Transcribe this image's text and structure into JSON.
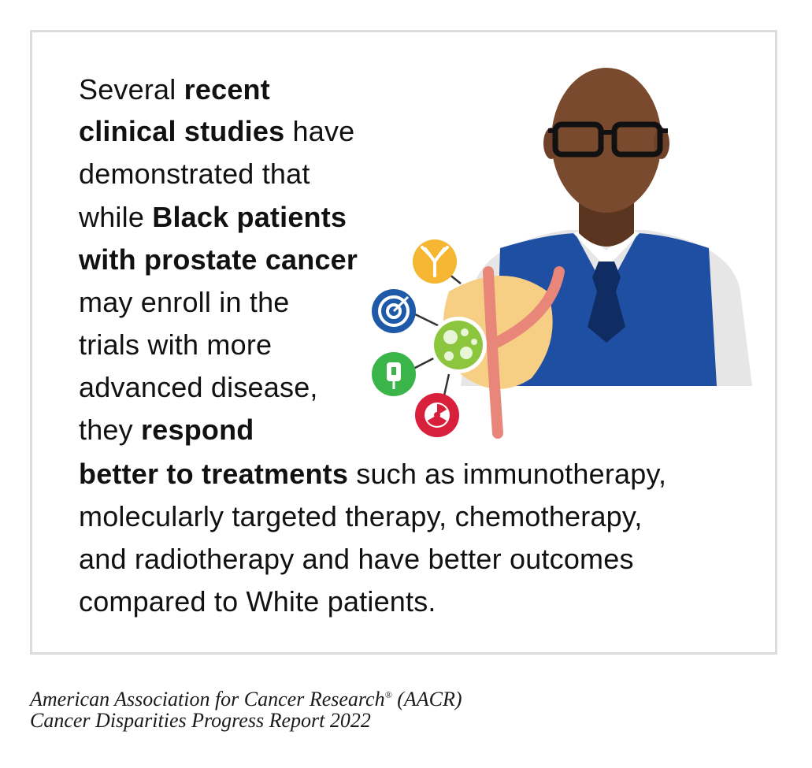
{
  "body_text": {
    "l1": {
      "a": "Several ",
      "b": "recent"
    },
    "l2": {
      "b": "clinical studies",
      "c": " have"
    },
    "l3": {
      "a": "demonstrated that"
    },
    "l4": {
      "a": "while ",
      "b": "Black patients"
    },
    "l5": {
      "b": "with prostate cancer"
    },
    "l6": {
      "a": "may enroll in the"
    },
    "l7": {
      "a": "trials with more"
    },
    "l8": {
      "a": "advanced disease,"
    },
    "l9": {
      "a": "they ",
      "b": "respond"
    },
    "l10": {
      "b": "better to treatments",
      "c": " such as immunotherapy,"
    },
    "l11": {
      "a": "molecularly targeted therapy, chemotherapy,"
    },
    "l12": {
      "a": "and radiotherapy and have better outcomes"
    },
    "l13": {
      "a": "compared to White patients."
    }
  },
  "credit": {
    "line1_a": "American Association for Cancer Research",
    "line1_reg": "®",
    "line1_b": " (AACR)",
    "line2": "Cancer Disparities Progress Report 2022"
  },
  "illustration": {
    "figure": "bald-man-with-glasses-vest-tie",
    "organ": "prostate-with-urethra",
    "treatment_icons": [
      "antibody-icon",
      "target-icon",
      "iv-bag-icon",
      "radiation-icon"
    ],
    "colors": {
      "skin": "#7a4a2e",
      "vest": "#1f4fa3",
      "tie": "#0f2d63",
      "shirt": "#e6e6e6",
      "prostate": "#f6cf85",
      "urethra": "#e8867a",
      "cell": "#8cc63f",
      "antibody_bg": "#f5b731",
      "target_bg": "#1e5aa8",
      "iv_bg": "#3ab54a",
      "radiation_bg": "#d81f3c"
    }
  }
}
